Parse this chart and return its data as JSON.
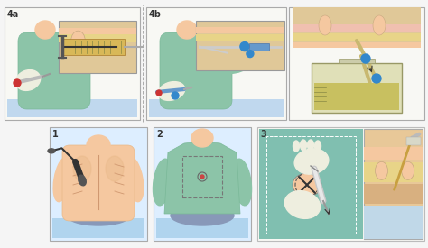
{
  "background_color": "#f5f5f5",
  "panel_border": "#bbbbbb",
  "panel1_bg": "#ddeeff",
  "panel2_bg": "#ddeeff",
  "panel3_bg": "#f0f0f0",
  "panel4_bg": "#f0f0f0",
  "skin_light": "#f5c8a0",
  "skin_mid": "#e8b888",
  "skin_dark": "#d8a870",
  "gown_green": "#8cc4a8",
  "gown_green2": "#7ab898",
  "drape_teal": "#80bfb0",
  "drape_teal2": "#6aafa0",
  "blue_water": "#b0d4ee",
  "blue_jeans": "#8898b8",
  "syringe_amber": "#c8a040",
  "syringe_body": "#d8b858",
  "needle_gray": "#aaaaaa",
  "blue_accent": "#3388cc",
  "blue_dark": "#1166aa",
  "white_glove": "#eeeedf",
  "inset_skin": "#e0c898",
  "inset_fat": "#e8d8a0",
  "inset_pink": "#f0c0b0",
  "bottle_body": "#e0e0b8",
  "bottle_fluid": "#c8c060",
  "label_color": "#333333",
  "red_dot": "#cc3333",
  "tube_color": "#c8b870"
}
